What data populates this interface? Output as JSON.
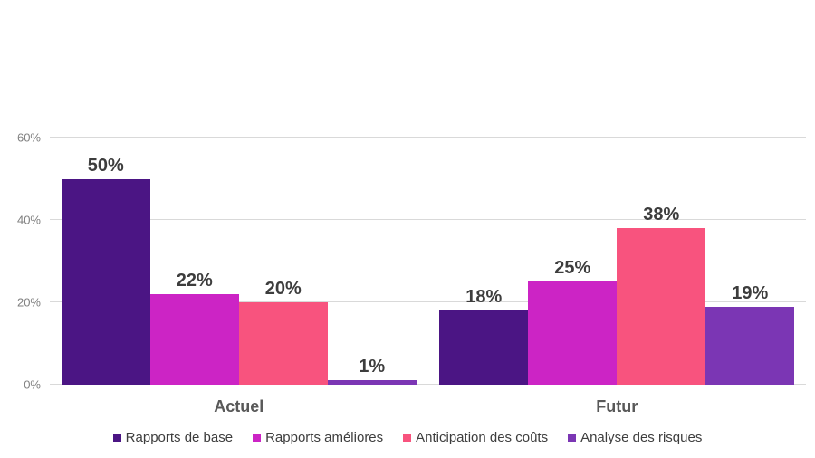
{
  "chart_data": {
    "type": "bar",
    "title": "",
    "categories": [
      "Actuel",
      "Futur"
    ],
    "series": [
      {
        "name": "Rapports de base",
        "color": "#4B1584",
        "values": [
          50,
          18
        ],
        "labels": [
          "50%",
          "18%"
        ]
      },
      {
        "name": "Rapports améliores",
        "color": "#CC24C5",
        "values": [
          22,
          25
        ],
        "labels": [
          "22%",
          "25%"
        ]
      },
      {
        "name": "Anticipation des coûts",
        "color": "#F8537E",
        "values": [
          20,
          38
        ],
        "labels": [
          "20%",
          "38%"
        ]
      },
      {
        "name": "Analyse des risques",
        "color": "#7B36B4",
        "values": [
          1,
          19
        ],
        "labels": [
          "1%",
          "19%"
        ]
      }
    ],
    "y_ticks": [
      {
        "label": "0%",
        "value": 0
      },
      {
        "label": "20%",
        "value": 20
      },
      {
        "label": "40%",
        "value": 40
      },
      {
        "label": "60%",
        "value": 60
      }
    ],
    "ylim": [
      0,
      60
    ],
    "xlabel": "",
    "ylabel": "",
    "grid": true,
    "legend_position": "bottom",
    "background_color": "#ffffff",
    "gridline_color": "#d9d9d9",
    "tick_label_color": "#7f7f7f",
    "value_label_color": "#3d3d3d",
    "category_label_color": "#595959",
    "legend_text_color": "#3d3d3d"
  }
}
